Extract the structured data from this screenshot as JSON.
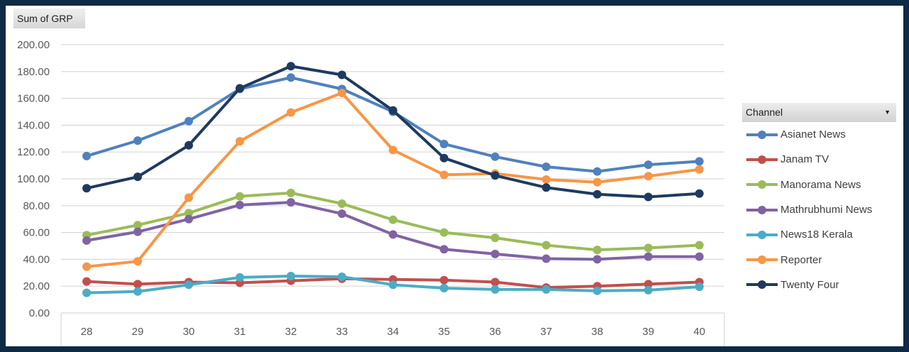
{
  "field_button": "Sum of GRP",
  "legend_title": "Channel",
  "chart_data": {
    "type": "line",
    "title": "",
    "xlabel": "",
    "ylabel": "Sum of GRP",
    "categories": [
      "28",
      "29",
      "30",
      "31",
      "32",
      "33",
      "34",
      "35",
      "36",
      "37",
      "38",
      "39",
      "40"
    ],
    "y_ticks": [
      "0.00",
      "20.00",
      "40.00",
      "60.00",
      "80.00",
      "100.00",
      "120.00",
      "140.00",
      "160.00",
      "180.00",
      "200.00"
    ],
    "ylim": [
      0,
      200
    ],
    "grid": true,
    "legend_position": "right",
    "series": [
      {
        "name": "Asianet News",
        "color": "#4f81bd",
        "values": [
          117,
          128.5,
          143,
          167,
          175.5,
          167,
          150,
          126,
          116.5,
          109,
          105.5,
          110.5,
          113
        ]
      },
      {
        "name": "Janam TV",
        "color": "#c0504d",
        "values": [
          23.5,
          21.5,
          23,
          22.5,
          24,
          25.5,
          25,
          24.5,
          23,
          19,
          20,
          21.5,
          23
        ]
      },
      {
        "name": "Manorama News",
        "color": "#9bbb59",
        "values": [
          58,
          65.5,
          74.5,
          87,
          89.5,
          81.5,
          69.5,
          60,
          56,
          50.5,
          47,
          48.5,
          50.5
        ]
      },
      {
        "name": "Mathrubhumi News",
        "color": "#8064a2",
        "values": [
          54,
          60.5,
          70,
          80.5,
          82.5,
          74,
          58.5,
          47.5,
          44,
          40.5,
          40,
          42,
          42
        ]
      },
      {
        "name": "News18 Kerala",
        "color": "#4bacc6",
        "values": [
          15,
          16,
          21,
          26.5,
          27.5,
          27,
          21,
          18.5,
          17.5,
          17.5,
          16.5,
          17,
          19.5
        ]
      },
      {
        "name": "Reporter",
        "color": "#f79646",
        "values": [
          34.5,
          38.5,
          86,
          128,
          149.5,
          164,
          121.5,
          103,
          104,
          99.5,
          97.5,
          102,
          107
        ]
      },
      {
        "name": "Twenty Four",
        "color": "#1f3a5f",
        "values": [
          93,
          101.5,
          125,
          167.5,
          184,
          177.5,
          151,
          115.5,
          102.5,
          93.5,
          88.5,
          86.5,
          89
        ]
      }
    ]
  }
}
